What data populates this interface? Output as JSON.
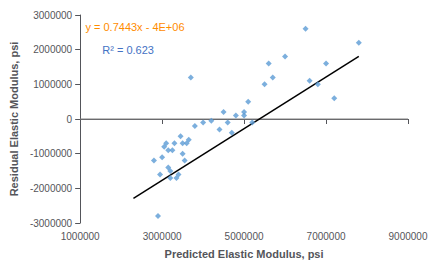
{
  "chart_data": {
    "type": "scatter",
    "xlabel": "Predicted Elastic Modulus, psi",
    "ylabel": "Residual Elastic Modulus, psi",
    "xlim": [
      1000000,
      9000000
    ],
    "ylim": [
      -3000000,
      3000000
    ],
    "xticks": [
      1000000,
      3000000,
      5000000,
      7000000,
      9000000
    ],
    "yticks": [
      -3000000,
      -2000000,
      -1000000,
      0,
      1000000,
      2000000,
      3000000
    ],
    "grid": false,
    "series": [
      {
        "type": "scatter",
        "marker": "diamond",
        "color": "#5b9bd5",
        "x": [
          2800000,
          2900000,
          2950000,
          3000000,
          3050000,
          3100000,
          3150000,
          3150000,
          3200000,
          3200000,
          3250000,
          3300000,
          3350000,
          3400000,
          3450000,
          3500000,
          3500000,
          3550000,
          3600000,
          3650000,
          3700000,
          3800000,
          4000000,
          4200000,
          4400000,
          4500000,
          4600000,
          4700000,
          4800000,
          5000000,
          5000000,
          5100000,
          5200000,
          5500000,
          5600000,
          5700000,
          6000000,
          6500000,
          6600000,
          6800000,
          7000000,
          7200000,
          7800000
        ],
        "values": [
          -1200000,
          -2800000,
          -1600000,
          -1100000,
          -800000,
          -700000,
          -900000,
          -1400000,
          -1500000,
          -1700000,
          -900000,
          -700000,
          -1700000,
          -1600000,
          -500000,
          -700000,
          -1000000,
          -1200000,
          -700000,
          -600000,
          1200000,
          -200000,
          -100000,
          -50000,
          -300000,
          200000,
          -100000,
          -400000,
          100000,
          100000,
          200000,
          500000,
          -100000,
          1000000,
          1600000,
          1200000,
          1800000,
          2600000,
          1100000,
          1000000,
          1600000,
          600000,
          2200000
        ]
      },
      {
        "type": "line",
        "color": "#000000",
        "x": [
          2300000,
          7800000
        ],
        "values": [
          -2288110,
          1805540
        ]
      },
      {
        "type": "line",
        "color": "#808080",
        "x": [
          1000000,
          9000000
        ],
        "values": [
          0,
          0
        ]
      }
    ],
    "annotations": [
      {
        "text": "y = 0.7443x - 4E+06",
        "color": "#ff8c00"
      },
      {
        "text": "R² = 0.623",
        "color": "#4472c4"
      }
    ]
  }
}
